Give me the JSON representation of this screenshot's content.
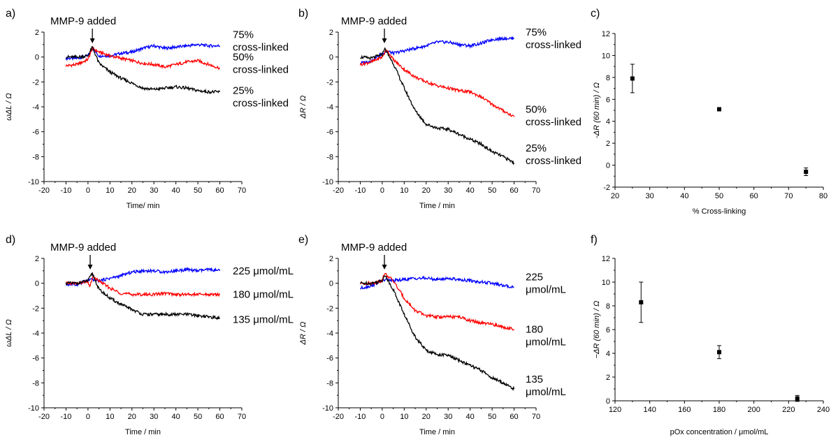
{
  "chart_data": [
    {
      "panel": "a)",
      "type": "line",
      "annotation": "MMP-9 added",
      "annotation_x": 2,
      "xlabel": "Time/ min",
      "ylabel": "ωΔL / Ω",
      "xlim": [
        -20,
        70
      ],
      "ylim": [
        -10,
        2
      ],
      "xticks": [
        -20,
        -10,
        0,
        10,
        20,
        30,
        40,
        50,
        60,
        70
      ],
      "yticks": [
        2,
        0,
        -2,
        -4,
        -6,
        -8,
        -10
      ],
      "series": [
        {
          "color": "#0000ff",
          "label": [
            "75%",
            "cross-linked"
          ],
          "label_y": 1.3,
          "points": [
            [
              -10,
              -0.1
            ],
            [
              -5,
              -0.1
            ],
            [
              0,
              0.1
            ],
            [
              2,
              0.7
            ],
            [
              5,
              0.1
            ],
            [
              10,
              0.1
            ],
            [
              15,
              0.3
            ],
            [
              20,
              0.4
            ],
            [
              25,
              0.7
            ],
            [
              30,
              0.9
            ],
            [
              35,
              0.7
            ],
            [
              40,
              0.8
            ],
            [
              45,
              0.9
            ],
            [
              50,
              1.0
            ],
            [
              55,
              0.9
            ],
            [
              60,
              0.9
            ]
          ]
        },
        {
          "color": "#ff0000",
          "label": [
            "50%",
            "cross-linked"
          ],
          "label_y": -0.5,
          "points": [
            [
              -10,
              -0.7
            ],
            [
              -5,
              -0.6
            ],
            [
              0,
              -0.2
            ],
            [
              2,
              0.7
            ],
            [
              5,
              0.4
            ],
            [
              10,
              0.1
            ],
            [
              15,
              -0.1
            ],
            [
              20,
              -0.3
            ],
            [
              25,
              -0.5
            ],
            [
              30,
              -0.6
            ],
            [
              35,
              -0.8
            ],
            [
              40,
              -0.6
            ],
            [
              45,
              -0.4
            ],
            [
              50,
              -0.3
            ],
            [
              55,
              -0.6
            ],
            [
              60,
              -0.9
            ]
          ]
        },
        {
          "color": "#000000",
          "label": [
            "25%",
            "cross-linked"
          ],
          "label_y": -3.2,
          "points": [
            [
              -10,
              0.0
            ],
            [
              -5,
              0.0
            ],
            [
              0,
              0.1
            ],
            [
              2,
              0.8
            ],
            [
              5,
              -0.5
            ],
            [
              10,
              -1.2
            ],
            [
              15,
              -1.7
            ],
            [
              20,
              -2.1
            ],
            [
              25,
              -2.5
            ],
            [
              30,
              -2.6
            ],
            [
              35,
              -2.5
            ],
            [
              40,
              -2.4
            ],
            [
              45,
              -2.5
            ],
            [
              50,
              -2.7
            ],
            [
              55,
              -2.8
            ],
            [
              60,
              -2.8
            ]
          ]
        }
      ]
    },
    {
      "panel": "b)",
      "type": "line",
      "annotation": "MMP-9 added",
      "annotation_x": 1,
      "xlabel": "Time / min",
      "ylabel": "ΔR / Ω",
      "xlim": [
        -20,
        70
      ],
      "ylim": [
        -10,
        2
      ],
      "xticks": [
        -20,
        -10,
        0,
        10,
        20,
        30,
        40,
        50,
        60,
        70
      ],
      "yticks": [
        2,
        0,
        -2,
        -4,
        -6,
        -8,
        -10
      ],
      "series": [
        {
          "color": "#0000ff",
          "label": [
            "75%",
            "cross-linked"
          ],
          "label_y": 1.5,
          "points": [
            [
              -10,
              -0.5
            ],
            [
              -5,
              -0.3
            ],
            [
              0,
              0.3
            ],
            [
              2,
              0.5
            ],
            [
              5,
              0.3
            ],
            [
              10,
              0.5
            ],
            [
              15,
              0.7
            ],
            [
              20,
              0.9
            ],
            [
              25,
              1.2
            ],
            [
              30,
              1.2
            ],
            [
              35,
              1.0
            ],
            [
              40,
              0.9
            ],
            [
              45,
              1.1
            ],
            [
              50,
              1.4
            ],
            [
              55,
              1.5
            ],
            [
              60,
              1.5
            ]
          ]
        },
        {
          "color": "#ff0000",
          "label": [
            "50%",
            "cross-linked"
          ],
          "label_y": -4.7,
          "points": [
            [
              -10,
              -0.6
            ],
            [
              -5,
              -0.4
            ],
            [
              0,
              0.0
            ],
            [
              2,
              0.6
            ],
            [
              5,
              -0.2
            ],
            [
              10,
              -1.0
            ],
            [
              15,
              -1.6
            ],
            [
              20,
              -2.0
            ],
            [
              25,
              -2.3
            ],
            [
              30,
              -2.5
            ],
            [
              35,
              -2.7
            ],
            [
              40,
              -2.8
            ],
            [
              45,
              -3.2
            ],
            [
              50,
              -3.8
            ],
            [
              55,
              -4.3
            ],
            [
              60,
              -4.8
            ]
          ]
        },
        {
          "color": "#000000",
          "label": [
            "25%",
            "cross-linked"
          ],
          "label_y": -7.8,
          "points": [
            [
              -10,
              0.0
            ],
            [
              -5,
              -0.1
            ],
            [
              0,
              0.2
            ],
            [
              1,
              0.7
            ],
            [
              5,
              -0.5
            ],
            [
              10,
              -2.5
            ],
            [
              15,
              -4.3
            ],
            [
              20,
              -5.4
            ],
            [
              25,
              -5.7
            ],
            [
              30,
              -5.8
            ],
            [
              35,
              -6.2
            ],
            [
              40,
              -6.6
            ],
            [
              45,
              -7.0
            ],
            [
              50,
              -7.6
            ],
            [
              55,
              -8.0
            ],
            [
              60,
              -8.5
            ]
          ]
        }
      ]
    },
    {
      "panel": "c)",
      "type": "scatter",
      "xlabel": "% Cross-linking",
      "ylabel": "-ΔR (60 min) / Ω",
      "xlim": [
        20,
        80
      ],
      "ylim": [
        -2,
        12
      ],
      "xticks": [
        20,
        30,
        40,
        50,
        60,
        70,
        80
      ],
      "yticks": [
        12,
        10,
        8,
        6,
        4,
        2,
        0,
        -2
      ],
      "points": [
        {
          "x": 25,
          "y": 7.9,
          "err": 1.3
        },
        {
          "x": 50,
          "y": 5.1,
          "err": 0.15
        },
        {
          "x": 75,
          "y": -0.6,
          "err": 0.35
        }
      ]
    },
    {
      "panel": "d)",
      "type": "line",
      "annotation": "MMP-9 added",
      "annotation_x": 1,
      "xlabel": "Time / min",
      "ylabel": "ωΔL / Ω",
      "xlim": [
        -20,
        70
      ],
      "ylim": [
        -10,
        2
      ],
      "xticks": [
        -20,
        -10,
        0,
        10,
        20,
        30,
        40,
        50,
        60,
        70
      ],
      "yticks": [
        2,
        0,
        -2,
        -4,
        -6,
        -8,
        -10
      ],
      "series": [
        {
          "color": "#0000ff",
          "label": [
            "225 μmol/mL"
          ],
          "label_y": 1.0,
          "points": [
            [
              -10,
              -0.1
            ],
            [
              -5,
              -0.1
            ],
            [
              0,
              0.2
            ],
            [
              2,
              0.3
            ],
            [
              5,
              0.2
            ],
            [
              10,
              0.4
            ],
            [
              15,
              0.6
            ],
            [
              20,
              0.9
            ],
            [
              25,
              1.0
            ],
            [
              30,
              1.0
            ],
            [
              35,
              0.9
            ],
            [
              40,
              1.0
            ],
            [
              45,
              1.1
            ],
            [
              50,
              1.0
            ],
            [
              55,
              1.1
            ],
            [
              60,
              1.0
            ]
          ]
        },
        {
          "color": "#ff0000",
          "label": [
            "180 μmol/mL"
          ],
          "label_y": -0.9,
          "points": [
            [
              -10,
              0.0
            ],
            [
              -5,
              0.0
            ],
            [
              0,
              0.1
            ],
            [
              1,
              -0.3
            ],
            [
              2,
              0.5
            ],
            [
              5,
              0.2
            ],
            [
              10,
              -0.4
            ],
            [
              15,
              -0.8
            ],
            [
              20,
              -0.9
            ],
            [
              25,
              -0.9
            ],
            [
              30,
              -0.9
            ],
            [
              35,
              -0.8
            ],
            [
              40,
              -0.9
            ],
            [
              45,
              -0.9
            ],
            [
              50,
              -0.9
            ],
            [
              55,
              -0.9
            ],
            [
              60,
              -0.9
            ]
          ]
        },
        {
          "color": "#000000",
          "label": [
            "135 μmol/mL"
          ],
          "label_y": -2.9,
          "points": [
            [
              -10,
              0.0
            ],
            [
              -5,
              0.0
            ],
            [
              0,
              0.2
            ],
            [
              2,
              0.8
            ],
            [
              5,
              -0.5
            ],
            [
              10,
              -1.2
            ],
            [
              15,
              -1.7
            ],
            [
              20,
              -2.1
            ],
            [
              25,
              -2.5
            ],
            [
              30,
              -2.5
            ],
            [
              35,
              -2.5
            ],
            [
              40,
              -2.5
            ],
            [
              45,
              -2.5
            ],
            [
              50,
              -2.6
            ],
            [
              55,
              -2.7
            ],
            [
              60,
              -2.8
            ]
          ]
        }
      ]
    },
    {
      "panel": "e)",
      "type": "line",
      "annotation": "MMP-9 added",
      "annotation_x": 1,
      "xlabel": "Time / min",
      "ylabel": "ΔR / Ω",
      "xlim": [
        -20,
        70
      ],
      "ylim": [
        -10,
        2
      ],
      "xticks": [
        -20,
        -10,
        0,
        10,
        20,
        30,
        40,
        50,
        60,
        70
      ],
      "yticks": [
        2,
        0,
        -2,
        -4,
        -6,
        -8,
        -10
      ],
      "series": [
        {
          "color": "#0000ff",
          "label": [
            "225",
            "μmol/mL"
          ],
          "label_y": 0.0,
          "points": [
            [
              -10,
              -0.4
            ],
            [
              -5,
              -0.2
            ],
            [
              0,
              0.2
            ],
            [
              2,
              0.3
            ],
            [
              5,
              0.2
            ],
            [
              10,
              0.3
            ],
            [
              15,
              0.4
            ],
            [
              20,
              0.4
            ],
            [
              25,
              0.3
            ],
            [
              30,
              0.4
            ],
            [
              35,
              0.3
            ],
            [
              40,
              0.2
            ],
            [
              45,
              0.1
            ],
            [
              50,
              0.0
            ],
            [
              55,
              -0.2
            ],
            [
              60,
              -0.3
            ]
          ]
        },
        {
          "color": "#ff0000",
          "label": [
            "180",
            "μmol/mL"
          ],
          "label_y": -4.2,
          "points": [
            [
              -10,
              0.0
            ],
            [
              -5,
              0.0
            ],
            [
              0,
              0.2
            ],
            [
              1,
              0.8
            ],
            [
              5,
              0.2
            ],
            [
              10,
              -1.2
            ],
            [
              15,
              -2.2
            ],
            [
              20,
              -2.6
            ],
            [
              25,
              -2.7
            ],
            [
              30,
              -2.7
            ],
            [
              35,
              -2.7
            ],
            [
              40,
              -3.0
            ],
            [
              45,
              -3.2
            ],
            [
              50,
              -3.3
            ],
            [
              55,
              -3.5
            ],
            [
              60,
              -3.7
            ]
          ]
        },
        {
          "color": "#000000",
          "label": [
            "135",
            "μmol/mL"
          ],
          "label_y": -8.2,
          "points": [
            [
              -10,
              0.0
            ],
            [
              -5,
              0.0
            ],
            [
              0,
              0.2
            ],
            [
              1,
              0.7
            ],
            [
              5,
              -0.5
            ],
            [
              10,
              -2.5
            ],
            [
              15,
              -4.3
            ],
            [
              20,
              -5.4
            ],
            [
              25,
              -5.7
            ],
            [
              30,
              -5.8
            ],
            [
              35,
              -6.2
            ],
            [
              40,
              -6.6
            ],
            [
              45,
              -7.0
            ],
            [
              50,
              -7.6
            ],
            [
              55,
              -8.0
            ],
            [
              60,
              -8.5
            ]
          ]
        }
      ]
    },
    {
      "panel": "f)",
      "type": "scatter",
      "xlabel": "pOx concentration / μmol/mL",
      "ylabel": "−ΔR (60 min) / Ω",
      "xlim": [
        120,
        240
      ],
      "ylim": [
        0,
        12
      ],
      "xticks": [
        120,
        140,
        160,
        180,
        200,
        220,
        240
      ],
      "yticks": [
        12,
        10,
        8,
        6,
        4,
        2,
        0
      ],
      "points": [
        {
          "x": 135,
          "y": 8.3,
          "err": 1.7
        },
        {
          "x": 180,
          "y": 4.1,
          "err": 0.55
        },
        {
          "x": 225,
          "y": 0.2,
          "err": 0.25
        }
      ]
    }
  ]
}
